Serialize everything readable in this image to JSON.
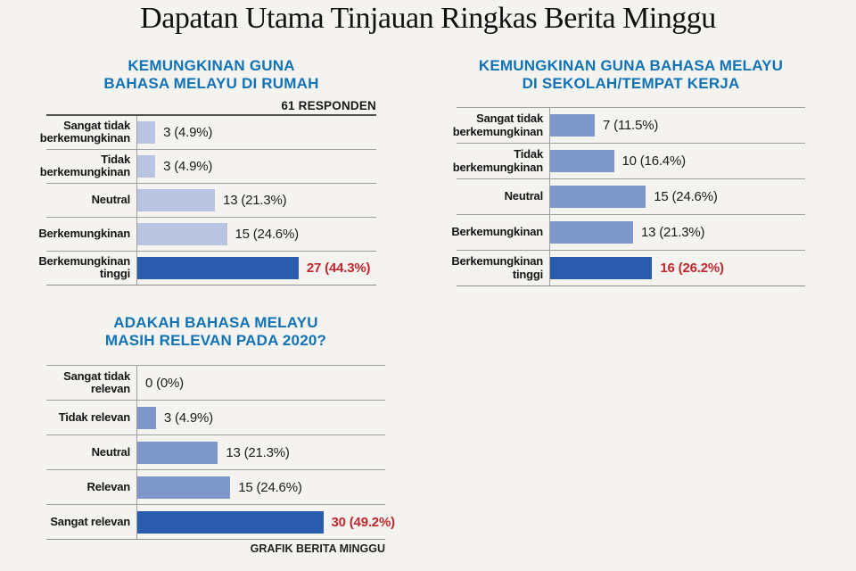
{
  "page": {
    "title": "Dapatan Utama Tinjauan Ringkas Berita Minggu",
    "credit": "GRAFIK BERITA MINGGU",
    "colors": {
      "background": "#f4f3f0",
      "header_blue": "#1173b5",
      "bar_light": "#b9c4e1",
      "bar_medium": "#7e97c9",
      "bar_highlight": "#2a5cae",
      "value_red": "#c0282e",
      "grid_gray": "#9f9f9f"
    }
  },
  "chart_data": [
    {
      "type": "bar",
      "orientation": "horizontal",
      "title_lines": [
        "KEMUNGKINAN GUNA",
        "BAHASA MELAYU DI RUMAH"
      ],
      "respondents_label": "61 RESPONDEN",
      "categories": [
        "Sangat tidak berkemungkinan",
        "Tidak berkemungkinan",
        "Neutral",
        "Berkemungkinan",
        "Berkemungkinan tinggi"
      ],
      "values": [
        3,
        3,
        13,
        15,
        27
      ],
      "percentages": [
        4.9,
        4.9,
        21.3,
        24.6,
        44.3
      ],
      "value_labels": [
        "3 (4.9%)",
        "3 (4.9%)",
        "13 (21.3%)",
        "15 (24.6%)",
        "27 (44.3%)"
      ],
      "highlight_index": 4,
      "xlim": [
        0,
        40
      ],
      "grid": false,
      "bar_color": "#b9c4e1",
      "highlight_color": "#2a5cae"
    },
    {
      "type": "bar",
      "orientation": "horizontal",
      "title_lines": [
        "KEMUNGKINAN GUNA BAHASA MELAYU",
        "DI SEKOLAH/TEMPAT KERJA"
      ],
      "categories": [
        "Sangat tidak berkemungkinan",
        "Tidak berkemungkinan",
        "Neutral",
        "Berkemungkinan",
        "Berkemungkinan tinggi"
      ],
      "values": [
        7,
        10,
        15,
        13,
        16
      ],
      "percentages": [
        11.5,
        16.4,
        24.6,
        21.3,
        26.2
      ],
      "value_labels": [
        "7 (11.5%)",
        "10 (16.4%)",
        "15 (24.6%)",
        "13 (21.3%)",
        "16 (26.2%)"
      ],
      "highlight_index": 4,
      "xlim": [
        0,
        40
      ],
      "grid": false,
      "bar_color": "#7e97c9",
      "highlight_color": "#2a5cae"
    },
    {
      "type": "bar",
      "orientation": "horizontal",
      "title_lines": [
        "ADAKAH BAHASA MELAYU",
        "MASIH RELEVAN PADA 2020?"
      ],
      "categories": [
        "Sangat tidak relevan",
        "Tidak relevan",
        "Neutral",
        "Relevan",
        "Sangat relevan"
      ],
      "values": [
        0,
        3,
        13,
        15,
        30
      ],
      "percentages": [
        0,
        4.9,
        21.3,
        24.6,
        49.2
      ],
      "value_labels": [
        "0 (0%)",
        "3 (4.9%)",
        "13 (21.3%)",
        "15 (24.6%)",
        "30 (49.2%)"
      ],
      "highlight_index": 4,
      "xlim": [
        0,
        40
      ],
      "grid": false,
      "bar_color": "#7e97c9",
      "highlight_color": "#2a5cae"
    }
  ]
}
